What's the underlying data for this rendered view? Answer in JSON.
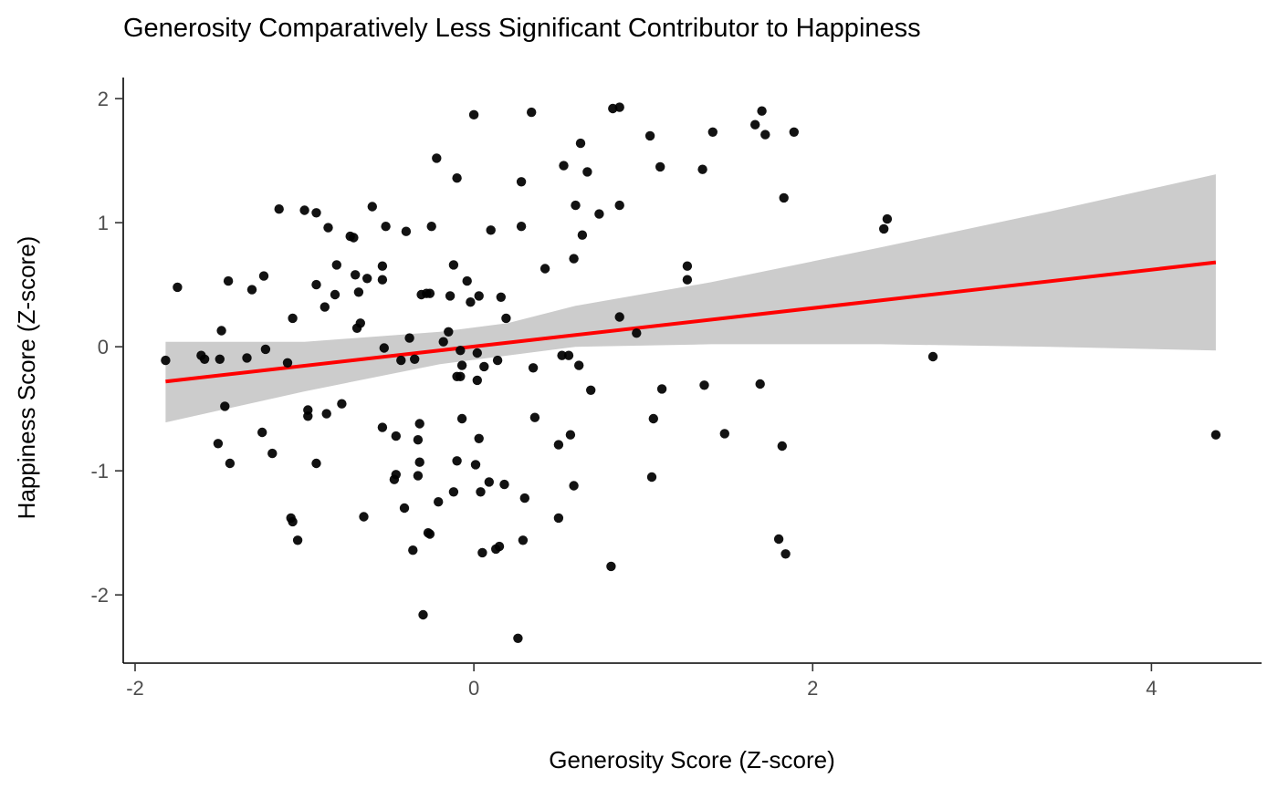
{
  "chart_data": {
    "type": "scatter",
    "title": "Generosity Comparatively Less Significant Contributor to Happiness",
    "xlabel": "Generosity Score (Z-score)",
    "ylabel": "Happiness Score (Z-score)",
    "xlim": [
      -2.07,
      4.65
    ],
    "ylim": [
      -2.55,
      2.17
    ],
    "x_ticks": [
      -2,
      0,
      2,
      4
    ],
    "y_ticks": [
      -2,
      -1,
      0,
      1,
      2
    ],
    "x_tick_labels": [
      "-2",
      "0",
      "2",
      "4"
    ],
    "y_tick_labels": [
      "-2",
      "-1",
      "0",
      "1",
      "2"
    ],
    "grid": false,
    "legend": "none",
    "colors": {
      "points": "#000000",
      "trend_line": "#ff0000",
      "confidence_band": "#cccccc"
    },
    "trend_line": {
      "x": [
        -1.82,
        4.38
      ],
      "y": [
        -0.28,
        0.68
      ]
    },
    "confidence_band": {
      "x": [
        -1.82,
        -1.0,
        -0.2,
        0.2,
        0.6,
        1.4,
        2.4,
        3.4,
        4.38
      ],
      "lower": [
        -0.61,
        -0.36,
        -0.14,
        -0.07,
        0.0,
        0.02,
        0.02,
        0.0,
        -0.03
      ],
      "upper": [
        0.04,
        0.04,
        0.12,
        0.19,
        0.33,
        0.52,
        0.8,
        1.09,
        1.39
      ]
    },
    "points": [
      {
        "x": -1.82,
        "y": -0.11
      },
      {
        "x": -1.75,
        "y": 0.48
      },
      {
        "x": -1.61,
        "y": -0.07
      },
      {
        "x": -1.59,
        "y": -0.1
      },
      {
        "x": -1.51,
        "y": -0.78
      },
      {
        "x": -1.5,
        "y": -0.1
      },
      {
        "x": -1.49,
        "y": 0.13
      },
      {
        "x": -1.47,
        "y": -0.48
      },
      {
        "x": -1.45,
        "y": 0.53
      },
      {
        "x": -1.44,
        "y": -0.94
      },
      {
        "x": -1.34,
        "y": -0.09
      },
      {
        "x": -1.31,
        "y": 0.46
      },
      {
        "x": -1.25,
        "y": -0.69
      },
      {
        "x": -1.24,
        "y": 0.57
      },
      {
        "x": -1.23,
        "y": -0.02
      },
      {
        "x": -1.19,
        "y": -0.86
      },
      {
        "x": -1.15,
        "y": 1.11
      },
      {
        "x": -1.1,
        "y": -0.13
      },
      {
        "x": -1.08,
        "y": -1.38
      },
      {
        "x": -1.07,
        "y": -1.41
      },
      {
        "x": -1.07,
        "y": 0.23
      },
      {
        "x": -1.04,
        "y": -1.56
      },
      {
        "x": -1.0,
        "y": 1.1
      },
      {
        "x": -0.98,
        "y": -0.51
      },
      {
        "x": -0.98,
        "y": -0.56
      },
      {
        "x": -0.93,
        "y": -0.94
      },
      {
        "x": -0.93,
        "y": 1.08
      },
      {
        "x": -0.93,
        "y": 0.5
      },
      {
        "x": -0.88,
        "y": 0.32
      },
      {
        "x": -0.87,
        "y": -0.54
      },
      {
        "x": -0.86,
        "y": 0.96
      },
      {
        "x": -0.82,
        "y": 0.42
      },
      {
        "x": -0.81,
        "y": 0.66
      },
      {
        "x": -0.78,
        "y": -0.46
      },
      {
        "x": -0.73,
        "y": 0.89
      },
      {
        "x": -0.71,
        "y": 0.88
      },
      {
        "x": -0.7,
        "y": 0.58
      },
      {
        "x": -0.69,
        "y": 0.15
      },
      {
        "x": -0.68,
        "y": 0.44
      },
      {
        "x": -0.67,
        "y": 0.19
      },
      {
        "x": -0.65,
        "y": -1.37
      },
      {
        "x": -0.63,
        "y": 0.55
      },
      {
        "x": -0.6,
        "y": 1.13
      },
      {
        "x": -0.54,
        "y": 0.54
      },
      {
        "x": -0.54,
        "y": 0.65
      },
      {
        "x": -0.54,
        "y": -0.65
      },
      {
        "x": -0.53,
        "y": -0.01
      },
      {
        "x": -0.52,
        "y": 0.97
      },
      {
        "x": -0.47,
        "y": -1.07
      },
      {
        "x": -0.46,
        "y": -1.03
      },
      {
        "x": -0.46,
        "y": -0.72
      },
      {
        "x": -0.43,
        "y": -0.11
      },
      {
        "x": -0.41,
        "y": -1.3
      },
      {
        "x": -0.4,
        "y": 0.93
      },
      {
        "x": -0.38,
        "y": 0.07
      },
      {
        "x": -0.36,
        "y": -1.64
      },
      {
        "x": -0.35,
        "y": -0.1
      },
      {
        "x": -0.33,
        "y": -0.75
      },
      {
        "x": -0.33,
        "y": -1.04
      },
      {
        "x": -0.32,
        "y": -0.93
      },
      {
        "x": -0.32,
        "y": -0.62
      },
      {
        "x": -0.31,
        "y": 0.42
      },
      {
        "x": -0.3,
        "y": -2.16
      },
      {
        "x": -0.28,
        "y": 0.43
      },
      {
        "x": -0.27,
        "y": -1.5
      },
      {
        "x": -0.26,
        "y": -1.51
      },
      {
        "x": -0.26,
        "y": 0.43
      },
      {
        "x": -0.25,
        "y": 0.97
      },
      {
        "x": -0.22,
        "y": 1.52
      },
      {
        "x": -0.21,
        "y": -1.25
      },
      {
        "x": -0.18,
        "y": 0.04
      },
      {
        "x": -0.15,
        "y": 0.12
      },
      {
        "x": -0.14,
        "y": 0.41
      },
      {
        "x": -0.12,
        "y": -1.17
      },
      {
        "x": -0.12,
        "y": 0.66
      },
      {
        "x": -0.1,
        "y": -0.24
      },
      {
        "x": -0.1,
        "y": 1.36
      },
      {
        "x": -0.1,
        "y": -0.92
      },
      {
        "x": -0.08,
        "y": -0.03
      },
      {
        "x": -0.08,
        "y": -0.24
      },
      {
        "x": -0.07,
        "y": -0.15
      },
      {
        "x": -0.07,
        "y": -0.58
      },
      {
        "x": -0.04,
        "y": 0.53
      },
      {
        "x": -0.02,
        "y": 0.36
      },
      {
        "x": 0.0,
        "y": 1.87
      },
      {
        "x": 0.01,
        "y": -0.95
      },
      {
        "x": 0.02,
        "y": -0.05
      },
      {
        "x": 0.02,
        "y": -0.27
      },
      {
        "x": 0.03,
        "y": -0.74
      },
      {
        "x": 0.03,
        "y": 0.41
      },
      {
        "x": 0.04,
        "y": -1.17
      },
      {
        "x": 0.05,
        "y": -1.66
      },
      {
        "x": 0.06,
        "y": -0.16
      },
      {
        "x": 0.09,
        "y": -1.09
      },
      {
        "x": 0.1,
        "y": 0.94
      },
      {
        "x": 0.13,
        "y": -1.63
      },
      {
        "x": 0.14,
        "y": -0.11
      },
      {
        "x": 0.15,
        "y": -1.61
      },
      {
        "x": 0.16,
        "y": 0.4
      },
      {
        "x": 0.18,
        "y": -1.11
      },
      {
        "x": 0.19,
        "y": 0.23
      },
      {
        "x": 0.26,
        "y": -2.35
      },
      {
        "x": 0.28,
        "y": 0.97
      },
      {
        "x": 0.28,
        "y": 1.33
      },
      {
        "x": 0.29,
        "y": -1.56
      },
      {
        "x": 0.3,
        "y": -1.22
      },
      {
        "x": 0.34,
        "y": 1.89
      },
      {
        "x": 0.35,
        "y": -0.17
      },
      {
        "x": 0.36,
        "y": -0.57
      },
      {
        "x": 0.42,
        "y": 0.63
      },
      {
        "x": 0.5,
        "y": -1.38
      },
      {
        "x": 0.5,
        "y": -0.79
      },
      {
        "x": 0.52,
        "y": -0.07
      },
      {
        "x": 0.53,
        "y": 1.46
      },
      {
        "x": 0.56,
        "y": -0.07
      },
      {
        "x": 0.57,
        "y": -0.71
      },
      {
        "x": 0.59,
        "y": -1.12
      },
      {
        "x": 0.59,
        "y": 0.71
      },
      {
        "x": 0.6,
        "y": 1.14
      },
      {
        "x": 0.62,
        "y": -0.15
      },
      {
        "x": 0.63,
        "y": 1.64
      },
      {
        "x": 0.64,
        "y": 0.9
      },
      {
        "x": 0.67,
        "y": 1.41
      },
      {
        "x": 0.69,
        "y": -0.35
      },
      {
        "x": 0.74,
        "y": 1.07
      },
      {
        "x": 0.81,
        "y": -1.77
      },
      {
        "x": 0.82,
        "y": 1.92
      },
      {
        "x": 0.86,
        "y": 1.93
      },
      {
        "x": 0.86,
        "y": 1.14
      },
      {
        "x": 0.86,
        "y": 0.24
      },
      {
        "x": 0.96,
        "y": 0.11
      },
      {
        "x": 1.04,
        "y": 1.7
      },
      {
        "x": 1.05,
        "y": -1.05
      },
      {
        "x": 1.06,
        "y": -0.58
      },
      {
        "x": 1.1,
        "y": 1.45
      },
      {
        "x": 1.11,
        "y": -0.34
      },
      {
        "x": 1.26,
        "y": 0.54
      },
      {
        "x": 1.26,
        "y": 0.65
      },
      {
        "x": 1.35,
        "y": 1.43
      },
      {
        "x": 1.36,
        "y": -0.31
      },
      {
        "x": 1.41,
        "y": 1.73
      },
      {
        "x": 1.48,
        "y": -0.7
      },
      {
        "x": 1.66,
        "y": 1.79
      },
      {
        "x": 1.69,
        "y": -0.3
      },
      {
        "x": 1.7,
        "y": 1.9
      },
      {
        "x": 1.72,
        "y": 1.71
      },
      {
        "x": 1.8,
        "y": -1.55
      },
      {
        "x": 1.82,
        "y": -0.8
      },
      {
        "x": 1.83,
        "y": 1.2
      },
      {
        "x": 1.84,
        "y": -1.67
      },
      {
        "x": 1.89,
        "y": 1.73
      },
      {
        "x": 2.42,
        "y": 0.95
      },
      {
        "x": 2.44,
        "y": 1.03
      },
      {
        "x": 2.71,
        "y": -0.08
      },
      {
        "x": 4.38,
        "y": -0.71
      }
    ]
  }
}
